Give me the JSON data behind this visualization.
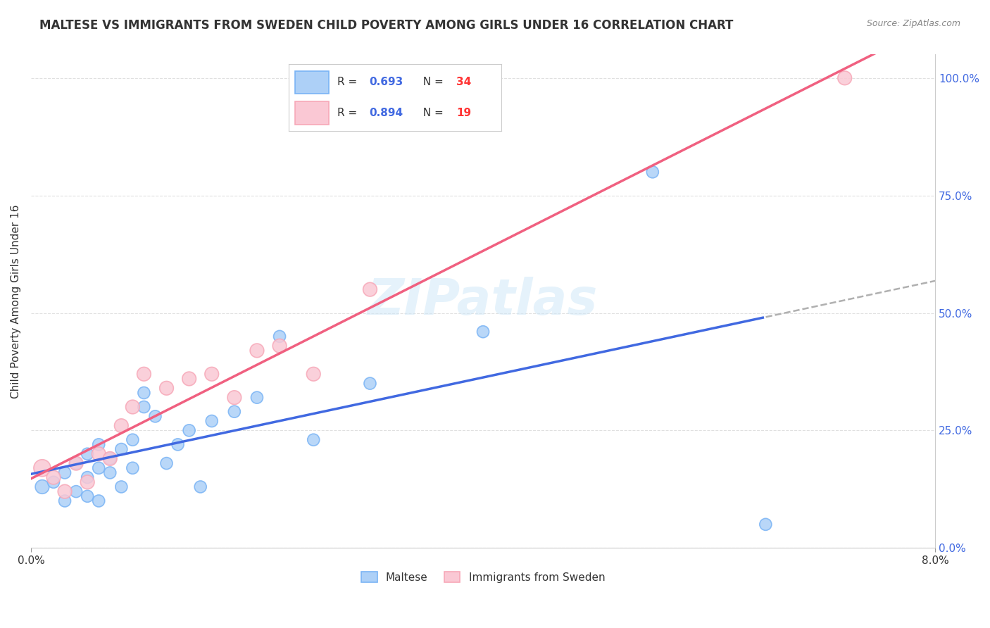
{
  "title": "MALTESE VS IMMIGRANTS FROM SWEDEN CHILD POVERTY AMONG GIRLS UNDER 16 CORRELATION CHART",
  "source": "Source: ZipAtlas.com",
  "ylabel": "Child Poverty Among Girls Under 16",
  "xlim": [
    0.0,
    0.08
  ],
  "ylim": [
    0.0,
    1.05
  ],
  "xtick_labels": [
    "0.0%",
    "8.0%"
  ],
  "ytick_labels": [
    "0.0%",
    "25.0%",
    "50.0%",
    "75.0%",
    "100.0%"
  ],
  "ytick_values": [
    0.0,
    0.25,
    0.5,
    0.75,
    1.0
  ],
  "xtick_values": [
    0.0,
    0.08
  ],
  "maltese_color": "#7ab4f5",
  "maltese_fill": "#add0f7",
  "sweden_color": "#f7a8b8",
  "sweden_fill": "#fac8d4",
  "trend_maltese_color": "#4169e1",
  "trend_sweden_color": "#f06080",
  "trend_dashed_color": "#b0b0b0",
  "watermark": "ZIPatlas",
  "maltese_x": [
    0.001,
    0.002,
    0.003,
    0.003,
    0.004,
    0.004,
    0.005,
    0.005,
    0.005,
    0.006,
    0.006,
    0.006,
    0.007,
    0.007,
    0.008,
    0.008,
    0.009,
    0.009,
    0.01,
    0.01,
    0.011,
    0.012,
    0.013,
    0.014,
    0.015,
    0.016,
    0.018,
    0.02,
    0.022,
    0.025,
    0.03,
    0.04,
    0.055,
    0.065
  ],
  "maltese_y": [
    0.13,
    0.14,
    0.1,
    0.16,
    0.12,
    0.18,
    0.11,
    0.15,
    0.2,
    0.1,
    0.17,
    0.22,
    0.16,
    0.19,
    0.13,
    0.21,
    0.23,
    0.17,
    0.3,
    0.33,
    0.28,
    0.18,
    0.22,
    0.25,
    0.13,
    0.27,
    0.29,
    0.32,
    0.45,
    0.23,
    0.35,
    0.46,
    0.8,
    0.05
  ],
  "sweden_x": [
    0.001,
    0.002,
    0.003,
    0.004,
    0.005,
    0.006,
    0.007,
    0.008,
    0.009,
    0.01,
    0.012,
    0.014,
    0.016,
    0.018,
    0.02,
    0.022,
    0.025,
    0.03,
    0.072
  ],
  "sweden_y": [
    0.17,
    0.15,
    0.12,
    0.18,
    0.14,
    0.2,
    0.19,
    0.26,
    0.3,
    0.37,
    0.34,
    0.36,
    0.37,
    0.32,
    0.42,
    0.43,
    0.37,
    0.55,
    1.0
  ],
  "maltese_sizes": [
    200,
    150,
    150,
    150,
    150,
    150,
    150,
    150,
    150,
    150,
    150,
    150,
    150,
    150,
    150,
    150,
    150,
    150,
    150,
    150,
    150,
    150,
    150,
    150,
    150,
    150,
    150,
    150,
    150,
    150,
    150,
    150,
    150,
    150
  ],
  "sweden_sizes": [
    300,
    200,
    200,
    200,
    200,
    200,
    200,
    200,
    200,
    200,
    200,
    200,
    200,
    200,
    200,
    200,
    200,
    200,
    200
  ],
  "background_color": "#ffffff",
  "grid_color": "#e0e0e0",
  "R_color": "#4169e1",
  "N_color": "#ff3333",
  "text_color": "#333333"
}
